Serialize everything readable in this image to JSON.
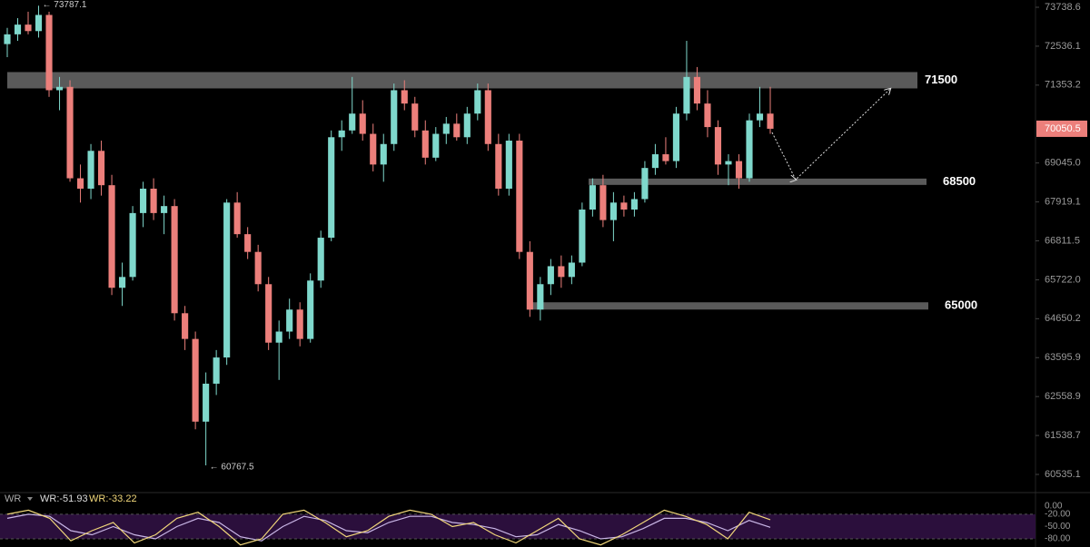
{
  "chart_data": [
    {
      "type": "candlestick",
      "log": true,
      "grid": false,
      "ylim": [
        60073,
        73965
      ],
      "yticks": [
        73738.6,
        72536.1,
        71353.2,
        {
          "value": 69045,
          "label": "69045.0"
        },
        67919.1,
        66811.5,
        {
          "value": 65722,
          "label": "65722.0"
        },
        64650.2,
        63595.9,
        62558.9,
        61538.7,
        60535.1
      ],
      "up_color": "#7fd8cc",
      "down_color": "#ec7f7b",
      "last_price": 70050.5,
      "levels": [
        71500,
        68500,
        65000
      ],
      "annotations": [
        {
          "value": 73787.1,
          "label": "← 73787.1"
        },
        {
          "value": 60767.5,
          "label": "← 60767.5"
        }
      ],
      "candles": [
        [
          72600,
          73100,
          72200,
          72900
        ],
        [
          72900,
          73400,
          72700,
          73200
        ],
        [
          73200,
          73600,
          72900,
          73000
        ],
        [
          73000,
          73787.1,
          72800,
          73500
        ],
        [
          73500,
          73600,
          71000,
          71200
        ],
        [
          71200,
          71600,
          70600,
          71300
        ],
        [
          71300,
          71500,
          68500,
          68600
        ],
        [
          68600,
          69000,
          67900,
          68300
        ],
        [
          68300,
          69600,
          68000,
          69400
        ],
        [
          69400,
          69700,
          68100,
          68400
        ],
        [
          68400,
          68700,
          65300,
          65500
        ],
        [
          65500,
          66200,
          65000,
          65800
        ],
        [
          65800,
          67800,
          65700,
          67600
        ],
        [
          67600,
          68500,
          67200,
          68300
        ],
        [
          68300,
          68600,
          67400,
          67600
        ],
        [
          67600,
          68100,
          67000,
          67800
        ],
        [
          67800,
          68000,
          64600,
          64800
        ],
        [
          64800,
          65000,
          63800,
          64100
        ],
        [
          64100,
          64300,
          61700,
          61900
        ],
        [
          61900,
          63200,
          60767.5,
          62900
        ],
        [
          62900,
          63800,
          62600,
          63600
        ],
        [
          63600,
          68000,
          63400,
          67900
        ],
        [
          67900,
          68200,
          66900,
          67000
        ],
        [
          67000,
          67200,
          66300,
          66500
        ],
        [
          66500,
          66700,
          65400,
          65600
        ],
        [
          65600,
          65800,
          63800,
          64000
        ],
        [
          64000,
          64600,
          63000,
          64300
        ],
        [
          64300,
          65200,
          64100,
          64900
        ],
        [
          64900,
          65100,
          63900,
          64100
        ],
        [
          64100,
          65900,
          64000,
          65700
        ],
        [
          65700,
          67100,
          65500,
          66900
        ],
        [
          66900,
          70000,
          66800,
          69800
        ],
        [
          69800,
          70300,
          69400,
          70000
        ],
        [
          70000,
          71600,
          69900,
          70500
        ],
        [
          70500,
          70900,
          69700,
          69900
        ],
        [
          69900,
          70200,
          68800,
          69000
        ],
        [
          69000,
          69900,
          68500,
          69600
        ],
        [
          69600,
          71400,
          69400,
          71200
        ],
        [
          71200,
          71500,
          70600,
          70800
        ],
        [
          70800,
          71000,
          69800,
          70000
        ],
        [
          70000,
          70300,
          69000,
          69200
        ],
        [
          69200,
          70100,
          69100,
          69900
        ],
        [
          69900,
          70400,
          69600,
          70200
        ],
        [
          70200,
          70500,
          69700,
          69800
        ],
        [
          69800,
          70700,
          69600,
          70500
        ],
        [
          70500,
          71400,
          70300,
          71200
        ],
        [
          71200,
          71400,
          69400,
          69600
        ],
        [
          69600,
          69900,
          68100,
          68300
        ],
        [
          68300,
          69900,
          68100,
          69700
        ],
        [
          69700,
          69900,
          66300,
          66500
        ],
        [
          66500,
          66800,
          64700,
          64900
        ],
        [
          64900,
          65800,
          64600,
          65600
        ],
        [
          65600,
          66300,
          65300,
          66100
        ],
        [
          66100,
          66400,
          65500,
          65800
        ],
        [
          65800,
          66400,
          65600,
          66200
        ],
        [
          66200,
          67900,
          66100,
          67700
        ],
        [
          67700,
          68600,
          67500,
          68400
        ],
        [
          68400,
          68700,
          67200,
          67400
        ],
        [
          67400,
          68200,
          66800,
          67900
        ],
        [
          67900,
          68100,
          67500,
          67700
        ],
        [
          67700,
          68200,
          67500,
          68000
        ],
        [
          68000,
          69100,
          67900,
          68900
        ],
        [
          68900,
          69600,
          68700,
          69300
        ],
        [
          69300,
          69800,
          69000,
          69100
        ],
        [
          69100,
          70700,
          68900,
          70500
        ],
        [
          70500,
          72700,
          70300,
          71600
        ],
        [
          71600,
          71900,
          70600,
          70800
        ],
        [
          70800,
          71200,
          69800,
          70100
        ],
        [
          70100,
          70300,
          68700,
          69000
        ],
        [
          69000,
          69300,
          68400,
          69100
        ],
        [
          69100,
          69300,
          68300,
          68600
        ],
        [
          68600,
          70500,
          68500,
          70300
        ],
        [
          70300,
          71300,
          70100,
          70500
        ],
        [
          70500,
          71300,
          69900,
          70050.5
        ]
      ]
    },
    {
      "type": "line",
      "title": "WR",
      "ylim": [
        -100,
        22
      ],
      "yticks": [
        {
          "value": 0,
          "label": "0.00"
        },
        {
          "value": -20,
          "label": "-20.00"
        },
        {
          "value": -50,
          "label": "-50.00"
        },
        {
          "value": -80,
          "label": "-80.00"
        }
      ],
      "band": [
        -20,
        -80
      ],
      "band_color": "#2b0f3c",
      "series": [
        {
          "name": "WR:-51.93",
          "color": "#c9b6e6",
          "values": [
            -30,
            -20,
            -25,
            -60,
            -70,
            -50,
            -70,
            -80,
            -50,
            -30,
            -40,
            -75,
            -85,
            -50,
            -25,
            -35,
            -60,
            -65,
            -40,
            -25,
            -25,
            -40,
            -45,
            -55,
            -75,
            -70,
            -45,
            -60,
            -80,
            -75,
            -55,
            -30,
            -30,
            -40,
            -60,
            -35,
            -51.93
          ]
        },
        {
          "name": "WR:-33.22",
          "color": "#f1d77a",
          "values": [
            -20,
            -10,
            -30,
            -85,
            -60,
            -40,
            -90,
            -70,
            -30,
            -15,
            -50,
            -95,
            -80,
            -20,
            -10,
            -40,
            -75,
            -60,
            -25,
            -10,
            -20,
            -50,
            -40,
            -70,
            -90,
            -60,
            -30,
            -80,
            -95,
            -70,
            -40,
            -10,
            -25,
            -45,
            -80,
            -15,
            -33.22
          ]
        }
      ]
    }
  ]
}
